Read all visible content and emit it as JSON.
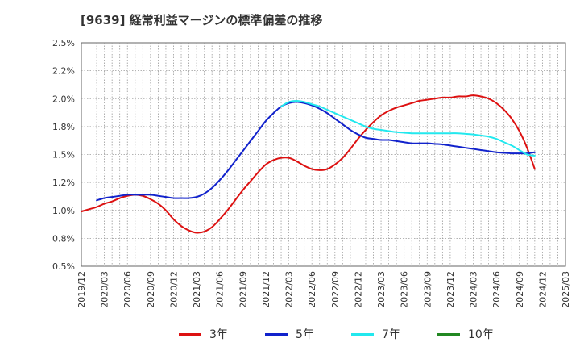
{
  "chart_data": {
    "type": "line",
    "title": "[9639]  経常利益マージンの標準偏差の推移",
    "xlabel": "",
    "ylabel": "",
    "ylim": [
      0.5,
      2.5
    ],
    "y_ticks": [
      "0.5%",
      "0.8%",
      "1.0%",
      "1.2%",
      "1.5%",
      "1.8%",
      "2.0%",
      "2.2%",
      "2.5%"
    ],
    "x_ticks": [
      "2019/12",
      "2020/03",
      "2020/06",
      "2020/09",
      "2020/12",
      "2021/03",
      "2021/06",
      "2021/09",
      "2021/12",
      "2022/03",
      "2022/06",
      "2022/09",
      "2022/12",
      "2023/03",
      "2023/06",
      "2023/09",
      "2023/12",
      "2024/03",
      "2024/06",
      "2024/09",
      "2024/12",
      "2025/03"
    ],
    "grid": true,
    "legend_position": "bottom",
    "series": [
      {
        "name": "3年",
        "color": "#dd1111",
        "points": [
          [
            "2019/12",
            0.99
          ],
          [
            "2020/01",
            1.01
          ],
          [
            "2020/02",
            1.03
          ],
          [
            "2020/03",
            1.06
          ],
          [
            "2020/04",
            1.08
          ],
          [
            "2020/05",
            1.11
          ],
          [
            "2020/06",
            1.13
          ],
          [
            "2020/07",
            1.14
          ],
          [
            "2020/08",
            1.13
          ],
          [
            "2020/09",
            1.1
          ],
          [
            "2020/10",
            1.06
          ],
          [
            "2020/11",
            1.0
          ],
          [
            "2020/12",
            0.92
          ],
          [
            "2021/01",
            0.86
          ],
          [
            "2021/02",
            0.82
          ],
          [
            "2021/03",
            0.8
          ],
          [
            "2021/04",
            0.81
          ],
          [
            "2021/05",
            0.85
          ],
          [
            "2021/06",
            0.92
          ],
          [
            "2021/07",
            1.0
          ],
          [
            "2021/08",
            1.09
          ],
          [
            "2021/09",
            1.18
          ],
          [
            "2021/10",
            1.26
          ],
          [
            "2021/11",
            1.34
          ],
          [
            "2021/12",
            1.41
          ],
          [
            "2022/01",
            1.45
          ],
          [
            "2022/02",
            1.47
          ],
          [
            "2022/03",
            1.47
          ],
          [
            "2022/04",
            1.44
          ],
          [
            "2022/05",
            1.4
          ],
          [
            "2022/06",
            1.37
          ],
          [
            "2022/07",
            1.36
          ],
          [
            "2022/08",
            1.37
          ],
          [
            "2022/09",
            1.41
          ],
          [
            "2022/10",
            1.47
          ],
          [
            "2022/11",
            1.55
          ],
          [
            "2022/12",
            1.64
          ],
          [
            "2023/01",
            1.72
          ],
          [
            "2023/02",
            1.79
          ],
          [
            "2023/03",
            1.85
          ],
          [
            "2023/04",
            1.89
          ],
          [
            "2023/05",
            1.92
          ],
          [
            "2023/06",
            1.94
          ],
          [
            "2023/07",
            1.96
          ],
          [
            "2023/08",
            1.98
          ],
          [
            "2023/09",
            1.99
          ],
          [
            "2023/10",
            2.0
          ],
          [
            "2023/11",
            2.01
          ],
          [
            "2023/12",
            2.01
          ],
          [
            "2024/01",
            2.02
          ],
          [
            "2024/02",
            2.02
          ],
          [
            "2024/03",
            2.03
          ],
          [
            "2024/04",
            2.02
          ],
          [
            "2024/05",
            2.0
          ],
          [
            "2024/06",
            1.96
          ],
          [
            "2024/07",
            1.9
          ],
          [
            "2024/08",
            1.82
          ],
          [
            "2024/09",
            1.71
          ],
          [
            "2024/10",
            1.56
          ],
          [
            "2024/11",
            1.37
          ]
        ]
      },
      {
        "name": "5年",
        "color": "#1122cc",
        "points": [
          [
            "2020/02",
            1.09
          ],
          [
            "2020/03",
            1.11
          ],
          [
            "2020/04",
            1.12
          ],
          [
            "2020/05",
            1.13
          ],
          [
            "2020/06",
            1.14
          ],
          [
            "2020/07",
            1.14
          ],
          [
            "2020/08",
            1.14
          ],
          [
            "2020/09",
            1.14
          ],
          [
            "2020/10",
            1.13
          ],
          [
            "2020/11",
            1.12
          ],
          [
            "2020/12",
            1.11
          ],
          [
            "2021/01",
            1.11
          ],
          [
            "2021/02",
            1.11
          ],
          [
            "2021/03",
            1.12
          ],
          [
            "2021/04",
            1.15
          ],
          [
            "2021/05",
            1.2
          ],
          [
            "2021/06",
            1.27
          ],
          [
            "2021/07",
            1.35
          ],
          [
            "2021/08",
            1.44
          ],
          [
            "2021/09",
            1.53
          ],
          [
            "2021/10",
            1.62
          ],
          [
            "2021/11",
            1.71
          ],
          [
            "2021/12",
            1.8
          ],
          [
            "2022/01",
            1.87
          ],
          [
            "2022/02",
            1.93
          ],
          [
            "2022/03",
            1.96
          ],
          [
            "2022/04",
            1.97
          ],
          [
            "2022/05",
            1.96
          ],
          [
            "2022/06",
            1.94
          ],
          [
            "2022/07",
            1.91
          ],
          [
            "2022/08",
            1.87
          ],
          [
            "2022/09",
            1.82
          ],
          [
            "2022/10",
            1.77
          ],
          [
            "2022/11",
            1.72
          ],
          [
            "2022/12",
            1.68
          ],
          [
            "2023/01",
            1.65
          ],
          [
            "2023/02",
            1.64
          ],
          [
            "2023/03",
            1.63
          ],
          [
            "2023/04",
            1.63
          ],
          [
            "2023/05",
            1.62
          ],
          [
            "2023/06",
            1.61
          ],
          [
            "2023/07",
            1.6
          ],
          [
            "2023/08",
            1.6
          ],
          [
            "2023/09",
            1.6
          ],
          [
            "2023/10",
            1.595
          ],
          [
            "2023/11",
            1.59
          ],
          [
            "2023/12",
            1.58
          ],
          [
            "2024/01",
            1.57
          ],
          [
            "2024/02",
            1.56
          ],
          [
            "2024/03",
            1.55
          ],
          [
            "2024/04",
            1.54
          ],
          [
            "2024/05",
            1.53
          ],
          [
            "2024/06",
            1.52
          ],
          [
            "2024/07",
            1.515
          ],
          [
            "2024/08",
            1.51
          ],
          [
            "2024/09",
            1.51
          ],
          [
            "2024/10",
            1.51
          ],
          [
            "2024/11",
            1.52
          ]
        ]
      },
      {
        "name": "7年",
        "color": "#22e8ee",
        "points": [
          [
            "2022/02",
            1.93
          ],
          [
            "2022/03",
            1.97
          ],
          [
            "2022/04",
            1.98
          ],
          [
            "2022/05",
            1.97
          ],
          [
            "2022/06",
            1.95
          ],
          [
            "2022/07",
            1.93
          ],
          [
            "2022/08",
            1.9
          ],
          [
            "2022/09",
            1.87
          ],
          [
            "2022/10",
            1.84
          ],
          [
            "2022/11",
            1.81
          ],
          [
            "2022/12",
            1.78
          ],
          [
            "2023/01",
            1.75
          ],
          [
            "2023/02",
            1.73
          ],
          [
            "2023/03",
            1.72
          ],
          [
            "2023/04",
            1.71
          ],
          [
            "2023/05",
            1.7
          ],
          [
            "2023/06",
            1.695
          ],
          [
            "2023/07",
            1.69
          ],
          [
            "2023/08",
            1.69
          ],
          [
            "2023/09",
            1.69
          ],
          [
            "2023/10",
            1.69
          ],
          [
            "2023/11",
            1.69
          ],
          [
            "2023/12",
            1.69
          ],
          [
            "2024/01",
            1.69
          ],
          [
            "2024/02",
            1.685
          ],
          [
            "2024/03",
            1.68
          ],
          [
            "2024/04",
            1.67
          ],
          [
            "2024/05",
            1.66
          ],
          [
            "2024/06",
            1.64
          ],
          [
            "2024/07",
            1.61
          ],
          [
            "2024/08",
            1.58
          ],
          [
            "2024/09",
            1.54
          ],
          [
            "2024/10",
            1.5
          ],
          [
            "2024/11",
            1.49
          ]
        ]
      },
      {
        "name": "10年",
        "color": "#228822",
        "points": []
      }
    ]
  }
}
